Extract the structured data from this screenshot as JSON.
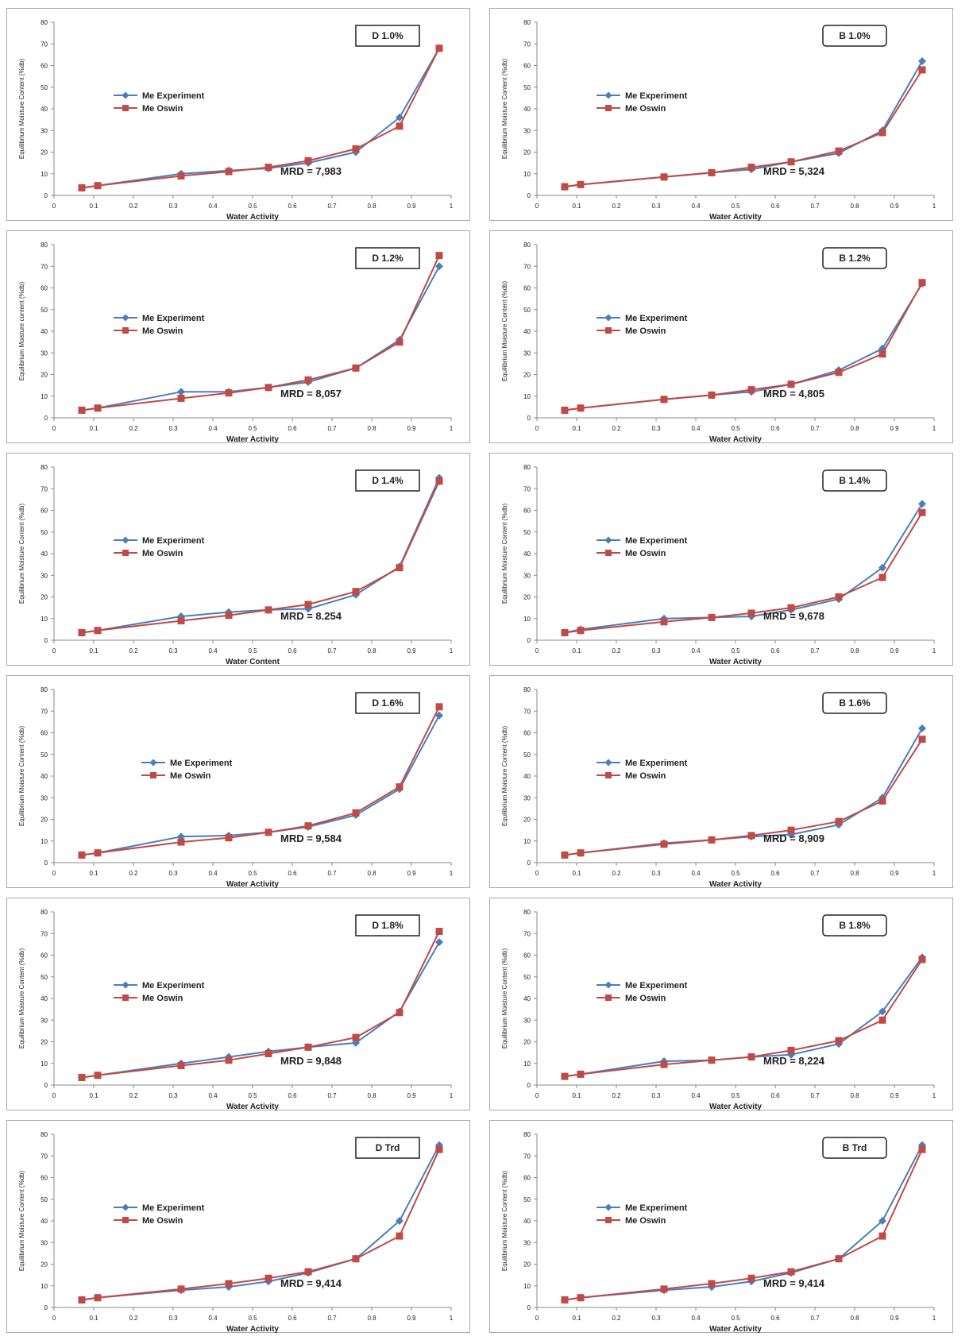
{
  "figure": {
    "legend_labels": [
      "Me Experiment",
      "Me Oswin"
    ],
    "colors": {
      "experiment": "#4a7ebb",
      "oswin": "#be4b48",
      "axis": "#888888",
      "frame": "#aaaaaa"
    },
    "icons": {
      "experiment_marker": "diamond-marker",
      "oswin_marker": "square-marker"
    }
  },
  "chart_data": [
    {
      "type": "line",
      "box_label": "D 1.0%",
      "mrd_label": "MRD = 7,983",
      "xlabel": "Water Activity",
      "ylabel": "Equilibrium Moisture Content (%db)",
      "xlim": [
        0,
        1
      ],
      "ylim": [
        0,
        80
      ],
      "xticks": [
        "0",
        "0.1",
        "0.2",
        "0.3",
        "0.4",
        "0.5",
        "0.6",
        "0.7",
        "0.8",
        "0.9",
        "1"
      ],
      "yticks": [
        "0",
        "10",
        "20",
        "30",
        "40",
        "50",
        "60",
        "70",
        "80"
      ],
      "legend_position": "left",
      "series": [
        {
          "name": "Me Experiment",
          "x": [
            0.07,
            0.11,
            0.32,
            0.44,
            0.54,
            0.64,
            0.76,
            0.87,
            0.97
          ],
          "y": [
            3.5,
            4.5,
            10,
            11.5,
            12.5,
            15,
            20,
            36,
            68
          ]
        },
        {
          "name": "Me Oswin",
          "x": [
            0.07,
            0.11,
            0.32,
            0.44,
            0.54,
            0.64,
            0.76,
            0.87,
            0.97
          ],
          "y": [
            3.5,
            4.5,
            9,
            11,
            13,
            16,
            21.5,
            32,
            68
          ]
        }
      ]
    },
    {
      "type": "line",
      "box_label": "B 1.0%",
      "mrd_label": "MRD = 5,324",
      "xlabel": "Water Activity",
      "ylabel": "Equilibrium Moisture Content (%db)",
      "xlim": [
        0,
        1
      ],
      "ylim": [
        0,
        80
      ],
      "xticks": [
        "0",
        "0.1",
        "0.2",
        "0.3",
        "0.4",
        "0.5",
        "0.6",
        "0.7",
        "0.8",
        "0.9",
        "1"
      ],
      "yticks": [
        "0",
        "10",
        "20",
        "30",
        "40",
        "50",
        "60",
        "70",
        "80"
      ],
      "legend_position": "left",
      "series": [
        {
          "name": "Me Experiment",
          "x": [
            0.07,
            0.11,
            0.32,
            0.44,
            0.54,
            0.64,
            0.76,
            0.87,
            0.97
          ],
          "y": [
            4,
            5,
            8.5,
            10.5,
            12,
            15.5,
            19.5,
            30,
            62
          ]
        },
        {
          "name": "Me Oswin",
          "x": [
            0.07,
            0.11,
            0.32,
            0.44,
            0.54,
            0.64,
            0.76,
            0.87,
            0.97
          ],
          "y": [
            4,
            5,
            8.5,
            10.5,
            13,
            15.5,
            20.5,
            29,
            58
          ]
        }
      ]
    },
    {
      "type": "line",
      "box_label": "D 1.2%",
      "mrd_label": "MRD = 8,057",
      "xlabel": "Water Activity",
      "ylabel": "Equilibrium Moisture content (%db)",
      "xlim": [
        0,
        1
      ],
      "ylim": [
        0,
        80
      ],
      "xticks": [
        "0",
        "0.1",
        "0.2",
        "0.3",
        "0.4",
        "0.5",
        "0.6",
        "0.7",
        "0.8",
        "0.9",
        "1"
      ],
      "yticks": [
        "0",
        "10",
        "20",
        "30",
        "40",
        "50",
        "60",
        "70",
        "80"
      ],
      "legend_position": "left",
      "series": [
        {
          "name": "Me Experiment",
          "x": [
            0.07,
            0.11,
            0.32,
            0.44,
            0.54,
            0.64,
            0.76,
            0.87,
            0.97
          ],
          "y": [
            3.5,
            4.5,
            12,
            12,
            14,
            16.5,
            23,
            36,
            70
          ]
        },
        {
          "name": "Me Oswin",
          "x": [
            0.07,
            0.11,
            0.32,
            0.44,
            0.54,
            0.64,
            0.76,
            0.87,
            0.97
          ],
          "y": [
            3.5,
            4.5,
            9,
            11.5,
            14,
            17.5,
            23,
            35,
            75
          ]
        }
      ]
    },
    {
      "type": "line",
      "box_label": "B 1.2%",
      "mrd_label": "MRD = 4,805",
      "xlabel": "Water Activity",
      "ylabel": "Equilibrium Moisture Content (%db)",
      "xlim": [
        0,
        1
      ],
      "ylim": [
        0,
        80
      ],
      "xticks": [
        "0",
        "0.1",
        "0.2",
        "0.3",
        "0.4",
        "0.5",
        "0.6",
        "0.7",
        "0.8",
        "0.9",
        "1"
      ],
      "yticks": [
        "0",
        "10",
        "20",
        "30",
        "40",
        "50",
        "60",
        "70",
        "80"
      ],
      "legend_position": "left",
      "series": [
        {
          "name": "Me Experiment",
          "x": [
            0.07,
            0.11,
            0.32,
            0.44,
            0.54,
            0.64,
            0.76,
            0.87,
            0.97
          ],
          "y": [
            3.5,
            4.5,
            8.5,
            10.5,
            12,
            15.5,
            22,
            32,
            62
          ]
        },
        {
          "name": "Me Oswin",
          "x": [
            0.07,
            0.11,
            0.32,
            0.44,
            0.54,
            0.64,
            0.76,
            0.87,
            0.97
          ],
          "y": [
            3.5,
            4.5,
            8.5,
            10.5,
            13,
            15.5,
            21,
            29.5,
            62.5
          ]
        }
      ]
    },
    {
      "type": "line",
      "box_label": "D 1.4%",
      "mrd_label": "MRD = 8.254",
      "xlabel": "Water Content",
      "ylabel": "Equilibrium Moisture Content (%db)",
      "xlim": [
        0,
        1
      ],
      "ylim": [
        0,
        80
      ],
      "xticks": [
        "0",
        "0.1",
        "0.2",
        "0.3",
        "0.4",
        "0.5",
        "0.6",
        "0.7",
        "0.8",
        "0.9",
        "1"
      ],
      "yticks": [
        "0",
        "10",
        "20",
        "30",
        "40",
        "50",
        "60",
        "70",
        "80"
      ],
      "legend_position": "left",
      "series": [
        {
          "name": "Me Experiment",
          "x": [
            0.07,
            0.11,
            0.32,
            0.44,
            0.54,
            0.64,
            0.76,
            0.87,
            0.97
          ],
          "y": [
            3.5,
            4.5,
            11,
            13,
            14,
            14.5,
            21,
            34,
            75
          ]
        },
        {
          "name": "Me Oswin",
          "x": [
            0.07,
            0.11,
            0.32,
            0.44,
            0.54,
            0.64,
            0.76,
            0.87,
            0.97
          ],
          "y": [
            3.5,
            4.5,
            9,
            11.5,
            14,
            16.5,
            22.5,
            33.5,
            73.5
          ]
        }
      ]
    },
    {
      "type": "line",
      "box_label": "B 1.4%",
      "mrd_label": "MRD = 9,678",
      "xlabel": "Water Activity",
      "ylabel": "Equilibrium Moisture Content (%db)",
      "xlim": [
        0,
        1
      ],
      "ylim": [
        0,
        80
      ],
      "xticks": [
        "0",
        "0.1",
        "0.2",
        "0.3",
        "0.4",
        "0.5",
        "0.6",
        "0.7",
        "0.8",
        "0.9",
        "1"
      ],
      "yticks": [
        "0",
        "10",
        "20",
        "30",
        "40",
        "50",
        "60",
        "70",
        "80"
      ],
      "legend_position": "left",
      "series": [
        {
          "name": "Me Experiment",
          "x": [
            0.07,
            0.11,
            0.32,
            0.44,
            0.54,
            0.64,
            0.76,
            0.87,
            0.97
          ],
          "y": [
            3.5,
            5,
            10,
            10.5,
            11,
            14,
            19,
            33.5,
            63
          ]
        },
        {
          "name": "Me Oswin",
          "x": [
            0.07,
            0.11,
            0.32,
            0.44,
            0.54,
            0.64,
            0.76,
            0.87,
            0.97
          ],
          "y": [
            3.5,
            4.5,
            8.5,
            10.5,
            12.5,
            15,
            20,
            29,
            59
          ]
        }
      ]
    },
    {
      "type": "line",
      "box_label": "D 1.6%",
      "mrd_label": "MRD = 9,584",
      "xlabel": "Water Activity",
      "ylabel": "Equilibrium Moisture Content (%db)",
      "xlim": [
        0,
        1
      ],
      "ylim": [
        0,
        80
      ],
      "xticks": [
        "0",
        "0.1",
        "0.2",
        "0.3",
        "0.4",
        "0.5",
        "0.6",
        "0.7",
        "0.8",
        "0.9",
        "1"
      ],
      "yticks": [
        "0",
        "10",
        "20",
        "30",
        "40",
        "50",
        "60",
        "70",
        "80"
      ],
      "legend_position": "center",
      "series": [
        {
          "name": "Me Experiment",
          "x": [
            0.07,
            0.11,
            0.32,
            0.44,
            0.54,
            0.64,
            0.76,
            0.87,
            0.97
          ],
          "y": [
            3.5,
            4.5,
            12,
            12.5,
            14,
            16.5,
            22,
            34,
            68
          ]
        },
        {
          "name": "Me Oswin",
          "x": [
            0.07,
            0.11,
            0.32,
            0.44,
            0.54,
            0.64,
            0.76,
            0.87,
            0.97
          ],
          "y": [
            3.5,
            4.5,
            9.5,
            11.5,
            14,
            17,
            23,
            35,
            72
          ]
        }
      ]
    },
    {
      "type": "line",
      "box_label": "B 1.6%",
      "mrd_label": "MRD =  8,909",
      "xlabel": "Water Activity",
      "ylabel": "Equilibrium Moisture Content (%db)",
      "xlim": [
        0,
        1
      ],
      "ylim": [
        0,
        80
      ],
      "xticks": [
        "0",
        "0.1",
        "0.2",
        "0.3",
        "0.4",
        "0.5",
        "0.6",
        "0.7",
        "0.8",
        "0.9",
        "1"
      ],
      "yticks": [
        "0",
        "10",
        "20",
        "30",
        "40",
        "50",
        "60",
        "70",
        "80"
      ],
      "legend_position": "left",
      "series": [
        {
          "name": "Me Experiment",
          "x": [
            0.07,
            0.11,
            0.32,
            0.44,
            0.54,
            0.64,
            0.76,
            0.87,
            0.97
          ],
          "y": [
            3.5,
            4.5,
            9,
            10.5,
            12,
            13,
            17.5,
            30,
            62
          ]
        },
        {
          "name": "Me Oswin",
          "x": [
            0.07,
            0.11,
            0.32,
            0.44,
            0.54,
            0.64,
            0.76,
            0.87,
            0.97
          ],
          "y": [
            3.5,
            4.5,
            8.5,
            10.5,
            12.5,
            15,
            19,
            28.5,
            57
          ]
        }
      ]
    },
    {
      "type": "line",
      "box_label": "D 1.8%",
      "mrd_label": "MRD = 9,848",
      "xlabel": "Water Activity",
      "ylabel": "Equilibrium Moisture Content (%db)",
      "xlim": [
        0,
        1
      ],
      "ylim": [
        0,
        80
      ],
      "xticks": [
        "0",
        "0.1",
        "0.2",
        "0.3",
        "0.4",
        "0.5",
        "0.6",
        "0.7",
        "0.8",
        "0.9",
        "1"
      ],
      "yticks": [
        "0",
        "10",
        "20",
        "30",
        "40",
        "50",
        "60",
        "70",
        "80"
      ],
      "legend_position": "left",
      "series": [
        {
          "name": "Me Experiment",
          "x": [
            0.07,
            0.11,
            0.32,
            0.44,
            0.54,
            0.64,
            0.76,
            0.87,
            0.97
          ],
          "y": [
            3.5,
            4.5,
            10,
            13,
            15.5,
            17.5,
            19.5,
            34,
            66
          ]
        },
        {
          "name": "Me Oswin",
          "x": [
            0.07,
            0.11,
            0.32,
            0.44,
            0.54,
            0.64,
            0.76,
            0.87,
            0.97
          ],
          "y": [
            3.5,
            4.5,
            9,
            11.5,
            14.5,
            17.5,
            22,
            33.5,
            71
          ]
        }
      ]
    },
    {
      "type": "line",
      "box_label": "B 1.8%",
      "mrd_label": "MRD = 8,224",
      "xlabel": "Water Activity",
      "ylabel": "Equilibrium Moisture Content (%db)",
      "xlim": [
        0,
        1
      ],
      "ylim": [
        0,
        80
      ],
      "xticks": [
        "0",
        "0.1",
        "0.2",
        "0.3",
        "0.4",
        "0.5",
        "0.6",
        "0.7",
        "0.8",
        "0.9",
        "1"
      ],
      "yticks": [
        "0",
        "10",
        "20",
        "30",
        "40",
        "50",
        "60",
        "70",
        "80"
      ],
      "legend_position": "left",
      "series": [
        {
          "name": "Me Experiment",
          "x": [
            0.07,
            0.11,
            0.32,
            0.44,
            0.54,
            0.64,
            0.76,
            0.87,
            0.97
          ],
          "y": [
            4,
            5,
            11,
            11.5,
            13,
            14,
            19,
            34,
            59
          ]
        },
        {
          "name": "Me Oswin",
          "x": [
            0.07,
            0.11,
            0.32,
            0.44,
            0.54,
            0.64,
            0.76,
            0.87,
            0.97
          ],
          "y": [
            4,
            5,
            9.5,
            11.5,
            13,
            16,
            20.5,
            30,
            58
          ]
        }
      ]
    },
    {
      "type": "line",
      "box_label": "D Trd",
      "mrd_label": "MRD = 9,414",
      "xlabel": "Water Activity",
      "ylabel": "Equilibrium Moisture Content (%db)",
      "xlim": [
        0,
        1
      ],
      "ylim": [
        0,
        80
      ],
      "xticks": [
        "0",
        "0.1",
        "0.2",
        "0.3",
        "0.4",
        "0.5",
        "0.6",
        "0.7",
        "0.8",
        "0.9",
        "1"
      ],
      "yticks": [
        "0",
        "10",
        "20",
        "30",
        "40",
        "50",
        "60",
        "70",
        "80"
      ],
      "legend_position": "left",
      "series": [
        {
          "name": "Me Experiment",
          "x": [
            0.07,
            0.11,
            0.32,
            0.44,
            0.54,
            0.64,
            0.76,
            0.87,
            0.97
          ],
          "y": [
            3.5,
            4.5,
            8,
            9.5,
            12,
            16,
            22.5,
            40,
            75
          ]
        },
        {
          "name": "Me Oswin",
          "x": [
            0.07,
            0.11,
            0.32,
            0.44,
            0.54,
            0.64,
            0.76,
            0.87,
            0.97
          ],
          "y": [
            3.5,
            4.5,
            8.5,
            11,
            13.5,
            16.5,
            22.5,
            33,
            73
          ]
        }
      ]
    },
    {
      "type": "line",
      "box_label": "B Trd",
      "mrd_label": "MRD = 9,414",
      "xlabel": "Water Activity",
      "ylabel": "Equilibrium Moisture Content (%db)",
      "xlim": [
        0,
        1
      ],
      "ylim": [
        0,
        80
      ],
      "xticks": [
        "0",
        "0.1",
        "0.2",
        "0.3",
        "0.4",
        "0.5",
        "0.6",
        "0.7",
        "0.8",
        "0.9",
        "1"
      ],
      "yticks": [
        "0",
        "10",
        "20",
        "30",
        "40",
        "50",
        "60",
        "70",
        "80"
      ],
      "legend_position": "left",
      "series": [
        {
          "name": "Me Experiment",
          "x": [
            0.07,
            0.11,
            0.32,
            0.44,
            0.54,
            0.64,
            0.76,
            0.87,
            0.97
          ],
          "y": [
            3.5,
            4.5,
            8,
            9.5,
            12,
            16,
            22.5,
            40,
            75
          ]
        },
        {
          "name": "Me Oswin",
          "x": [
            0.07,
            0.11,
            0.32,
            0.44,
            0.54,
            0.64,
            0.76,
            0.87,
            0.97
          ],
          "y": [
            3.5,
            4.5,
            8.5,
            11,
            13.5,
            16.5,
            22.5,
            33,
            73
          ]
        }
      ]
    }
  ]
}
